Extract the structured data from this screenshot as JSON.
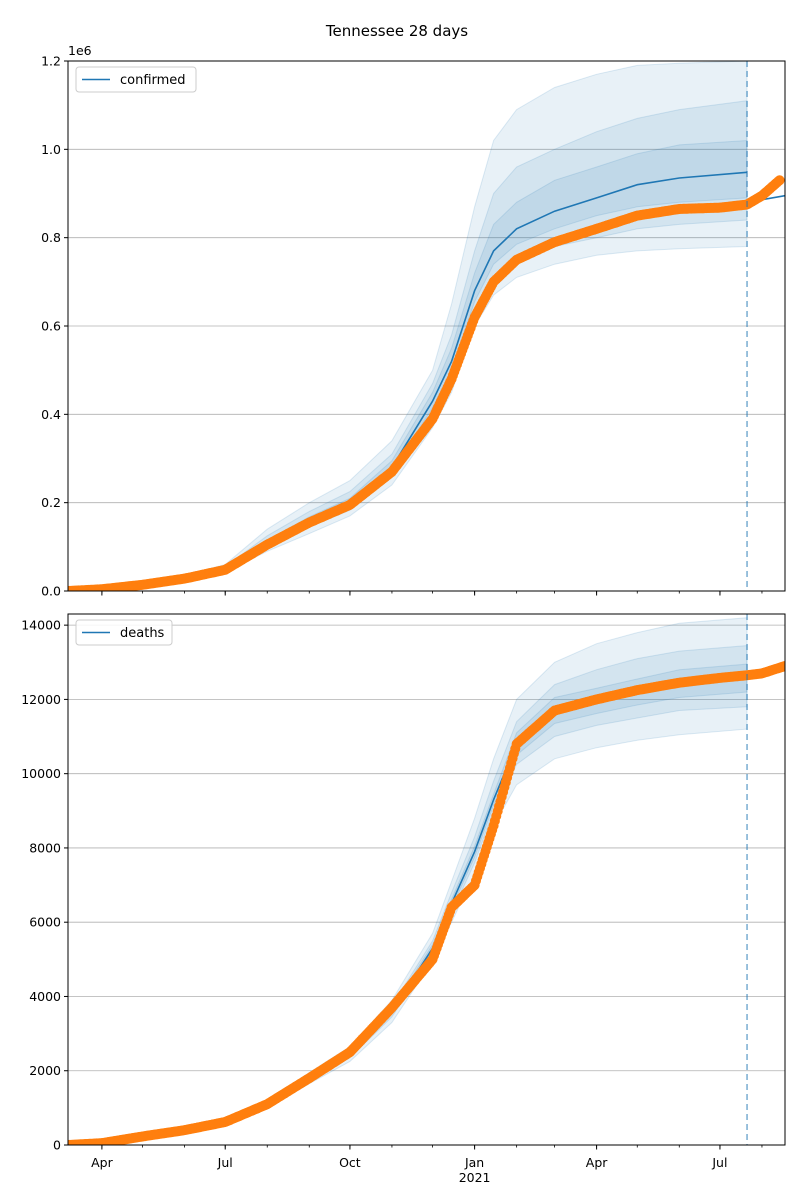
{
  "page_title": "Tennessee 28 days",
  "colors": {
    "model": "#1f77b4",
    "observed": "#ff7f0e",
    "band": "#1f77b4",
    "grid": "#b0b0b0",
    "forecast_line": "#1f77b4"
  },
  "x_axis": {
    "range": [
      "2020-03-07",
      "2021-08-18"
    ],
    "tick_labels": [
      {
        "date": "2020-04-01",
        "label": "Apr"
      },
      {
        "date": "2020-07-01",
        "label": "Jul"
      },
      {
        "date": "2020-10-01",
        "label": "Oct"
      },
      {
        "date": "2021-01-01",
        "label": "Jan"
      },
      {
        "date": "2021-04-01",
        "label": "Apr"
      },
      {
        "date": "2021-07-01",
        "label": "Jul"
      }
    ],
    "year_label": {
      "date": "2021-01-01",
      "label": "2021"
    },
    "forecast_start": "2021-07-21"
  },
  "chart_data": [
    {
      "type": "line",
      "title": "Tennessee 28 days",
      "legend": {
        "label": "confirmed",
        "placement": "top-left"
      },
      "ylim": [
        0,
        1.2
      ],
      "y_scale_label": "1e6",
      "y_ticks": [
        {
          "value": 0.0,
          "label": "0.0"
        },
        {
          "value": 0.2,
          "label": "0.2"
        },
        {
          "value": 0.4,
          "label": "0.4"
        },
        {
          "value": 0.6,
          "label": "0.6"
        },
        {
          "value": 0.8,
          "label": "0.8"
        },
        {
          "value": 1.0,
          "label": "1.0"
        },
        {
          "value": 1.2,
          "label": "1.2"
        }
      ],
      "grid": true,
      "model": {
        "dates": [
          "2020-03-07",
          "2020-04-01",
          "2020-05-01",
          "2020-06-01",
          "2020-07-01",
          "2020-08-01",
          "2020-09-01",
          "2020-10-01",
          "2020-11-01",
          "2020-12-01",
          "2020-12-15",
          "2021-01-01",
          "2021-01-15",
          "2021-02-01",
          "2021-03-01",
          "2021-04-01",
          "2021-05-01",
          "2021-06-01",
          "2021-07-21"
        ],
        "values": [
          0.0,
          0.005,
          0.015,
          0.03,
          0.05,
          0.11,
          0.16,
          0.2,
          0.28,
          0.43,
          0.52,
          0.68,
          0.77,
          0.82,
          0.86,
          0.89,
          0.92,
          0.935,
          0.948
        ]
      },
      "model_forecast": {
        "dates": [
          "2021-07-21",
          "2021-08-18"
        ],
        "values": [
          0.88,
          0.895
        ]
      },
      "bands": [
        {
          "level": "outer",
          "lower": [
            0.0,
            0.004,
            0.012,
            0.025,
            0.042,
            0.09,
            0.13,
            0.17,
            0.24,
            0.37,
            0.45,
            0.6,
            0.67,
            0.71,
            0.74,
            0.76,
            0.77,
            0.775,
            0.78
          ],
          "upper": [
            0.0,
            0.006,
            0.018,
            0.036,
            0.06,
            0.14,
            0.2,
            0.25,
            0.34,
            0.5,
            0.65,
            0.87,
            1.02,
            1.09,
            1.14,
            1.17,
            1.19,
            1.195,
            1.2
          ]
        },
        {
          "level": "middle",
          "lower": [
            0.0,
            0.0045,
            0.013,
            0.027,
            0.045,
            0.1,
            0.145,
            0.183,
            0.257,
            0.4,
            0.48,
            0.63,
            0.71,
            0.75,
            0.78,
            0.8,
            0.82,
            0.83,
            0.84
          ],
          "upper": [
            0.0,
            0.0055,
            0.017,
            0.033,
            0.055,
            0.125,
            0.18,
            0.225,
            0.31,
            0.47,
            0.58,
            0.77,
            0.9,
            0.96,
            1.0,
            1.04,
            1.07,
            1.09,
            1.11
          ]
        },
        {
          "level": "inner",
          "lower": [
            0.0,
            0.0048,
            0.014,
            0.029,
            0.048,
            0.105,
            0.152,
            0.192,
            0.27,
            0.415,
            0.5,
            0.655,
            0.74,
            0.785,
            0.82,
            0.85,
            0.87,
            0.88,
            0.89
          ],
          "upper": [
            0.0,
            0.0052,
            0.016,
            0.031,
            0.052,
            0.115,
            0.168,
            0.21,
            0.295,
            0.45,
            0.55,
            0.72,
            0.83,
            0.88,
            0.93,
            0.96,
            0.99,
            1.01,
            1.02
          ]
        }
      ],
      "observed": {
        "dates": [
          "2020-03-07",
          "2020-04-01",
          "2020-05-01",
          "2020-06-01",
          "2020-07-01",
          "2020-08-01",
          "2020-09-01",
          "2020-10-01",
          "2020-11-01",
          "2020-12-01",
          "2020-12-15",
          "2021-01-01",
          "2021-01-15",
          "2021-02-01",
          "2021-03-01",
          "2021-04-01",
          "2021-05-01",
          "2021-06-01",
          "2021-07-01",
          "2021-07-21",
          "2021-08-01",
          "2021-08-14"
        ],
        "values": [
          0.0,
          0.004,
          0.014,
          0.028,
          0.048,
          0.105,
          0.155,
          0.195,
          0.27,
          0.39,
          0.48,
          0.62,
          0.7,
          0.75,
          0.79,
          0.82,
          0.85,
          0.865,
          0.868,
          0.875,
          0.895,
          0.93
        ]
      }
    },
    {
      "type": "line",
      "legend": {
        "label": "deaths",
        "placement": "top-left"
      },
      "ylim": [
        0,
        14300
      ],
      "y_ticks": [
        {
          "value": 0,
          "label": "0"
        },
        {
          "value": 2000,
          "label": "2000"
        },
        {
          "value": 4000,
          "label": "4000"
        },
        {
          "value": 6000,
          "label": "6000"
        },
        {
          "value": 8000,
          "label": "8000"
        },
        {
          "value": 10000,
          "label": "10000"
        },
        {
          "value": 12000,
          "label": "12000"
        },
        {
          "value": 14000,
          "label": "14000"
        }
      ],
      "grid": true,
      "model": {
        "dates": [
          "2020-03-07",
          "2020-04-01",
          "2020-05-01",
          "2020-06-01",
          "2020-07-01",
          "2020-08-01",
          "2020-09-01",
          "2020-10-01",
          "2020-11-01",
          "2020-12-01",
          "2020-12-15",
          "2021-01-01",
          "2021-01-15",
          "2021-02-01",
          "2021-03-01",
          "2021-04-01",
          "2021-05-01",
          "2021-06-01",
          "2021-07-21"
        ],
        "values": [
          0,
          60,
          250,
          420,
          650,
          1100,
          1800,
          2450,
          3600,
          5300,
          6500,
          7900,
          9300,
          10800,
          11700,
          11950,
          12200,
          12450,
          12650
        ]
      },
      "model_forecast": {
        "dates": [
          "2021-07-21",
          "2021-08-18"
        ],
        "values": [
          12650,
          13000
        ]
      },
      "bands": [
        {
          "level": "outer",
          "lower": [
            0,
            55,
            220,
            380,
            590,
            1000,
            1650,
            2250,
            3300,
            4950,
            6000,
            7300,
            8600,
            9700,
            10400,
            10700,
            10900,
            11050,
            11200
          ],
          "upper": [
            0,
            65,
            280,
            460,
            710,
            1200,
            1950,
            2650,
            3900,
            5700,
            7100,
            8800,
            10400,
            12000,
            13000,
            13500,
            13800,
            14050,
            14200
          ]
        },
        {
          "level": "middle",
          "lower": [
            0,
            57,
            235,
            400,
            615,
            1050,
            1720,
            2350,
            3450,
            5100,
            6250,
            7600,
            9000,
            10250,
            11000,
            11300,
            11500,
            11700,
            11800
          ],
          "upper": [
            0,
            63,
            265,
            440,
            685,
            1150,
            1880,
            2550,
            3750,
            5500,
            6800,
            8300,
            9800,
            11400,
            12400,
            12800,
            13100,
            13300,
            13450
          ]
        },
        {
          "level": "inner",
          "lower": [
            0,
            59,
            243,
            410,
            632,
            1075,
            1760,
            2400,
            3525,
            5200,
            6380,
            7750,
            9150,
            10500,
            11350,
            11620,
            11850,
            12050,
            12200
          ],
          "upper": [
            0,
            61,
            257,
            430,
            668,
            1125,
            1840,
            2500,
            3675,
            5400,
            6620,
            8050,
            9450,
            11100,
            12050,
            12300,
            12550,
            12800,
            12950
          ]
        }
      ],
      "observed": {
        "dates": [
          "2020-03-07",
          "2020-04-01",
          "2020-05-01",
          "2020-06-01",
          "2020-07-01",
          "2020-08-01",
          "2020-09-01",
          "2020-10-01",
          "2020-11-01",
          "2020-12-01",
          "2020-12-15",
          "2021-01-01",
          "2021-01-15",
          "2021-02-01",
          "2021-03-01",
          "2021-04-01",
          "2021-05-01",
          "2021-06-01",
          "2021-07-01",
          "2021-07-21",
          "2021-08-01",
          "2021-08-18"
        ],
        "values": [
          0,
          50,
          230,
          400,
          620,
          1100,
          1800,
          2500,
          3700,
          5000,
          6400,
          7000,
          8600,
          10800,
          11700,
          12000,
          12250,
          12450,
          12580,
          12650,
          12700,
          12900
        ]
      }
    }
  ]
}
